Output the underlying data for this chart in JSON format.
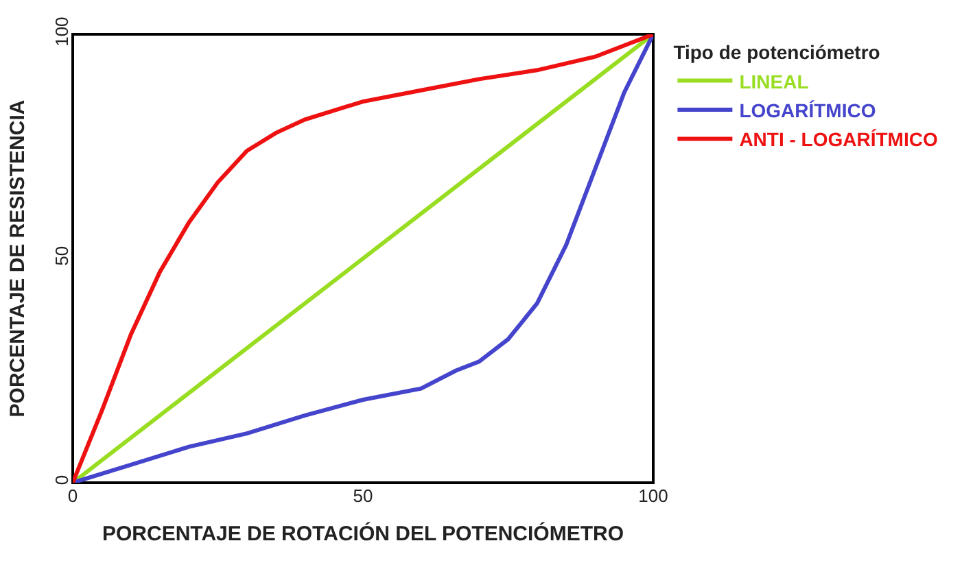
{
  "chart_data": {
    "type": "line",
    "xlabel": "PORCENTAJE DE ROTACIÓN DEL POTENCIÓMETRO",
    "ylabel": "PORCENTAJE DE RESISTENCIA",
    "legend_title": "Tipo de potenciómetro",
    "xlim": [
      0,
      100
    ],
    "ylim": [
      0,
      100
    ],
    "xticks": [
      0,
      50,
      100
    ],
    "yticks": [
      0,
      50,
      100
    ],
    "grid": false,
    "legend": "right",
    "marker": "none",
    "line_style": "solid",
    "series": [
      {
        "name": "LINEAL",
        "color": "#99dd22",
        "x": [
          0,
          100
        ],
        "values": [
          0,
          100
        ]
      },
      {
        "name": "LOGARÍTMICO",
        "color": "#4444cc",
        "x": [
          0,
          10,
          20,
          30,
          40,
          50,
          60,
          66,
          70,
          75,
          80,
          85,
          90,
          95,
          100
        ],
        "values": [
          0,
          4,
          8,
          11,
          15,
          18.5,
          21,
          25,
          27,
          32,
          40,
          53,
          70,
          87,
          100
        ]
      },
      {
        "name": "ANTI - LOGARÍTMICO",
        "color": "#ee1111",
        "x": [
          0,
          5,
          10,
          15,
          20,
          25,
          30,
          35,
          40,
          50,
          60,
          70,
          80,
          90,
          100
        ],
        "values": [
          0,
          16,
          33,
          47,
          58,
          67,
          74,
          78,
          81,
          85,
          87.5,
          90,
          92,
          95,
          100
        ]
      }
    ]
  }
}
